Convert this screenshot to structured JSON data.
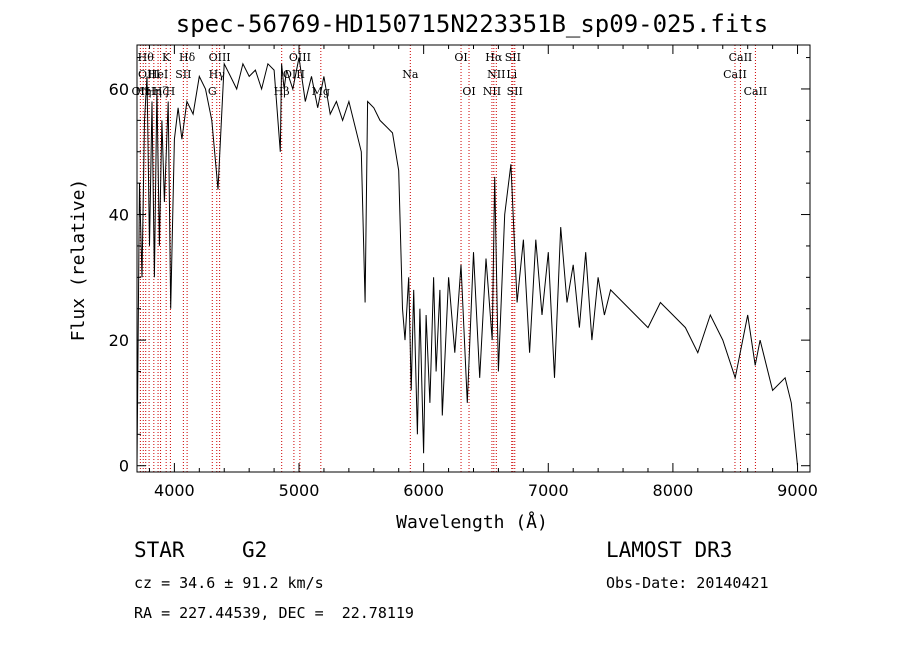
{
  "chart_data": {
    "type": "line",
    "title": "spec-56769-HD150715N223351B_sp09-025.fits",
    "xlabel": "Wavelength (Å)",
    "ylabel": "Flux (relative)",
    "xlim": [
      3700,
      9100
    ],
    "ylim": [
      -1,
      67
    ],
    "xticks": [
      4000,
      5000,
      6000,
      7000,
      8000,
      9000
    ],
    "yticks": [
      0,
      20,
      40,
      60
    ],
    "grid": false,
    "line_color": "#000000",
    "marker_color": "#cc0000",
    "series": [
      {
        "x": [
          3700,
          3720,
          3740,
          3760,
          3780,
          3800,
          3820,
          3840,
          3860,
          3880,
          3900,
          3920,
          3950,
          3970,
          4000,
          4030,
          4060,
          4100,
          4150,
          4200,
          4250,
          4300,
          4350,
          4400,
          4450,
          4500,
          4550,
          4600,
          4650,
          4700,
          4750,
          4800,
          4850,
          4860,
          4880,
          4900,
          4950,
          5000,
          5050,
          5100,
          5150,
          5200,
          5250,
          5300,
          5350,
          5400,
          5450,
          5500,
          5530,
          5550,
          5600,
          5650,
          5700,
          5750,
          5800,
          5830,
          5850,
          5880,
          5900,
          5920,
          5950,
          5970,
          6000,
          6020,
          6050,
          6080,
          6100,
          6130,
          6150,
          6200,
          6250,
          6300,
          6350,
          6400,
          6450,
          6500,
          6550,
          6570,
          6600,
          6650,
          6700,
          6750,
          6800,
          6850,
          6900,
          6950,
          7000,
          7050,
          7100,
          7150,
          7200,
          7250,
          7300,
          7350,
          7400,
          7450,
          7500,
          7600,
          7700,
          7800,
          7900,
          8000,
          8100,
          8200,
          8300,
          8400,
          8500,
          8540,
          8600,
          8660,
          8700,
          8800,
          8900,
          8950,
          9000
        ],
        "y": [
          0,
          45,
          30,
          55,
          62,
          35,
          58,
          30,
          60,
          35,
          55,
          42,
          58,
          25,
          52,
          57,
          52,
          58,
          56,
          62,
          60,
          55,
          44,
          64,
          62,
          60,
          64,
          62,
          63,
          60,
          64,
          63,
          50,
          64,
          60,
          63,
          60,
          65,
          58,
          62,
          57,
          62,
          56,
          58,
          55,
          58,
          54,
          50,
          26,
          58,
          57,
          55,
          54,
          53,
          47,
          25,
          20,
          30,
          12,
          28,
          5,
          25,
          2,
          24,
          10,
          30,
          15,
          28,
          8,
          30,
          18,
          32,
          10,
          34,
          14,
          33,
          20,
          46,
          15,
          40,
          48,
          26,
          36,
          18,
          36,
          24,
          34,
          14,
          38,
          26,
          32,
          22,
          34,
          20,
          30,
          24,
          28,
          26,
          24,
          22,
          26,
          24,
          22,
          18,
          24,
          20,
          14,
          18,
          24,
          16,
          20,
          12,
          14,
          10,
          0
        ]
      }
    ],
    "lines": [
      {
        "x": 3727,
        "label": "OII",
        "row": 2
      },
      {
        "x": 3750,
        "label": "Hη",
        "row": 2
      },
      {
        "x": 3770,
        "label": "Hθ",
        "row": 0
      },
      {
        "x": 3797,
        "label": "OIII",
        "row": 1
      },
      {
        "x": 3835,
        "label": "Hη",
        "row": 2
      },
      {
        "x": 3869,
        "label": "HeI",
        "row": 1
      },
      {
        "x": 3889,
        "label": "Hζ",
        "row": 2
      },
      {
        "x": 3934,
        "label": "K",
        "row": 0
      },
      {
        "x": 3968,
        "label": "H",
        "row": 2
      },
      {
        "x": 4072,
        "label": "SII",
        "row": 1
      },
      {
        "x": 4102,
        "label": "Hδ",
        "row": 0
      },
      {
        "x": 4304,
        "label": "G",
        "row": 2
      },
      {
        "x": 4340,
        "label": "Hγ",
        "row": 1
      },
      {
        "x": 4363,
        "label": "OIII",
        "row": 0
      },
      {
        "x": 4861,
        "label": "Hβ",
        "row": 2
      },
      {
        "x": 4959,
        "label": "OIII",
        "row": 1
      },
      {
        "x": 5007,
        "label": "OIII",
        "row": 0
      },
      {
        "x": 5175,
        "label": "Mg",
        "row": 2
      },
      {
        "x": 5893,
        "label": "Na",
        "row": 1
      },
      {
        "x": 6300,
        "label": "OI",
        "row": 0
      },
      {
        "x": 6364,
        "label": "OI",
        "row": 2
      },
      {
        "x": 6548,
        "label": "NII",
        "row": 2
      },
      {
        "x": 6563,
        "label": "Hα",
        "row": 0
      },
      {
        "x": 6583,
        "label": "NII",
        "row": 1
      },
      {
        "x": 6707,
        "label": "Li",
        "row": 1
      },
      {
        "x": 6716,
        "label": "SII",
        "row": 0
      },
      {
        "x": 6731,
        "label": "SII",
        "row": 2
      },
      {
        "x": 8498,
        "label": "CaII",
        "row": 1
      },
      {
        "x": 8542,
        "label": "CaII",
        "row": 0
      },
      {
        "x": 8662,
        "label": "CaII",
        "row": 2
      }
    ]
  },
  "info": {
    "class": "STAR",
    "subclass": "G2",
    "survey": "LAMOST DR3",
    "redshift": "cz = 34.6 ± 91.2 km/s",
    "obs_date": "Obs-Date: 20140421",
    "coords": "RA = 227.44539, DEC =  22.78119"
  }
}
